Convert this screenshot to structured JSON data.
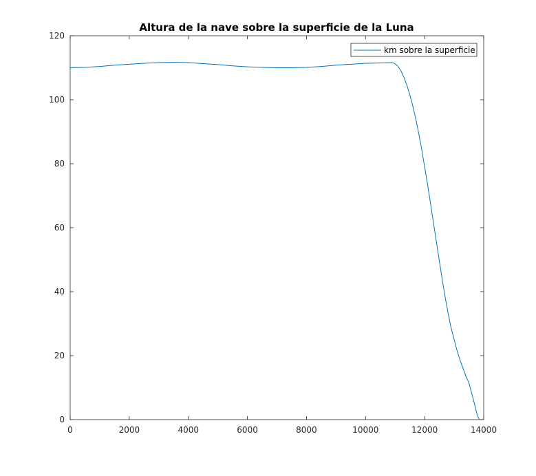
{
  "chart_data": {
    "type": "line",
    "title": "Altura de la nave sobre la superficie de la Luna",
    "xlabel": "",
    "ylabel": "",
    "xlim": [
      0,
      14000
    ],
    "ylim": [
      0,
      120
    ],
    "xticks": [
      0,
      2000,
      4000,
      6000,
      8000,
      10000,
      12000,
      14000
    ],
    "yticks": [
      0,
      20,
      40,
      60,
      80,
      100,
      120
    ],
    "grid": false,
    "legend_position": "top-right",
    "series": [
      {
        "name": "km sobre la superficie",
        "color": "#0072BD",
        "x": [
          0,
          500,
          1000,
          1500,
          2000,
          2500,
          3000,
          3500,
          4000,
          4500,
          5000,
          5500,
          6000,
          6500,
          7000,
          7500,
          8000,
          8500,
          9000,
          9500,
          10000,
          10500,
          10900,
          11000,
          11100,
          11200,
          11300,
          11400,
          11500,
          11600,
          11700,
          11800,
          11900,
          12000,
          12100,
          12200,
          12300,
          12400,
          12500,
          12600,
          12700,
          12800,
          12900,
          13000,
          13100,
          13200,
          13300,
          13400,
          13500,
          13600,
          13700,
          13750,
          13800,
          13830,
          13850,
          13870,
          13890
        ],
        "y": [
          110.0,
          110.1,
          110.4,
          110.8,
          111.1,
          111.4,
          111.6,
          111.7,
          111.6,
          111.3,
          111.0,
          110.6,
          110.3,
          110.1,
          110.0,
          110.0,
          110.1,
          110.4,
          110.8,
          111.1,
          111.4,
          111.5,
          111.6,
          111.3,
          110.4,
          109.0,
          107.0,
          104.5,
          101.5,
          98.0,
          94.0,
          89.5,
          84.5,
          79.0,
          73.5,
          67.5,
          61.5,
          55.5,
          49.5,
          43.5,
          38.0,
          33.0,
          28.5,
          25.0,
          21.5,
          18.5,
          16.0,
          13.5,
          11.5,
          8.0,
          4.5,
          2.5,
          1.0,
          0.4,
          0.1,
          0.0,
          0.0
        ]
      }
    ]
  }
}
